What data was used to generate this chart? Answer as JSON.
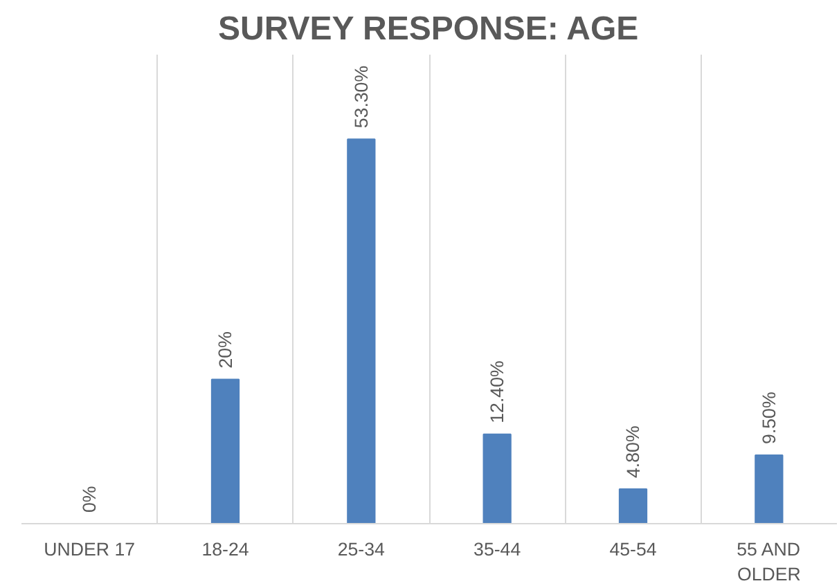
{
  "chart_data": {
    "type": "bar",
    "title": "SURVEY RESPONSE: AGE",
    "categories": [
      "UNDER 17",
      "18-24",
      "25-34",
      "35-44",
      "45-54",
      "55 AND OLDER"
    ],
    "values": [
      0,
      20,
      53.3,
      12.4,
      4.8,
      9.5
    ],
    "value_labels": [
      "0%",
      "20%",
      "53.30%",
      "12.40%",
      "4.80%",
      "9.50%"
    ],
    "color": "#4f81bd",
    "grid": "x",
    "tick_labels": "x"
  }
}
